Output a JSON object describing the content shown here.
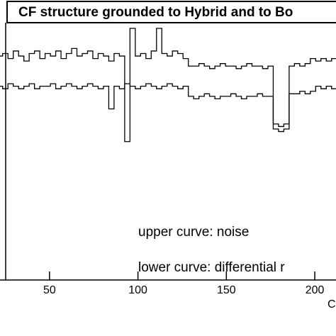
{
  "chart_data": {
    "type": "line",
    "title": "CF structure grounded to Hybrid and to Bo",
    "x_label": "C",
    "annotations": [
      "upper curve: noise",
      "lower curve: differential r"
    ],
    "x": [
      22,
      25,
      28,
      31,
      34,
      37,
      40,
      43,
      46,
      49,
      52,
      55,
      58,
      61,
      64,
      67,
      70,
      73,
      76,
      79,
      82,
      85,
      88,
      91,
      94,
      97,
      100,
      103,
      106,
      109,
      112,
      115,
      118,
      121,
      124,
      127,
      130,
      133,
      136,
      139,
      142,
      145,
      148,
      151,
      154,
      157,
      160,
      163,
      166,
      169,
      172,
      175,
      178,
      181,
      184,
      187,
      190,
      193,
      196,
      199,
      202,
      205,
      208,
      211
    ],
    "series": [
      {
        "color": "#000000",
        "values": [
          89,
          90,
          88,
          91,
          89,
          87,
          90,
          91,
          88,
          90,
          89,
          91,
          88,
          90,
          92,
          89,
          90,
          91,
          88,
          90,
          89,
          87,
          90,
          89,
          55,
          100,
          89,
          90,
          88,
          91,
          100,
          90,
          89,
          91,
          90,
          88,
          85,
          85,
          86,
          85,
          84,
          85,
          86,
          85,
          85,
          84,
          85,
          86,
          85,
          85,
          84,
          85,
          62,
          61,
          62,
          85,
          86,
          85,
          86,
          88,
          87,
          88,
          87,
          88
        ]
      },
      {
        "color": "#000000",
        "values": [
          77,
          76,
          78,
          77,
          76,
          77,
          78,
          76,
          77,
          77,
          78,
          76,
          77,
          78,
          77,
          76,
          77,
          78,
          77,
          76,
          77,
          68,
          77,
          76,
          78,
          77,
          76,
          77,
          78,
          77,
          76,
          77,
          78,
          77,
          76,
          77,
          73,
          72,
          73,
          74,
          73,
          72,
          73,
          73,
          74,
          73,
          72,
          73,
          73,
          74,
          73,
          73,
          60,
          59,
          60,
          74,
          74,
          75,
          74,
          75,
          77,
          76,
          77,
          76
        ]
      }
    ],
    "xlim": [
      22,
      212
    ],
    "ylim": [
      0,
      100
    ],
    "xticks": [
      50,
      100,
      150,
      200
    ]
  }
}
